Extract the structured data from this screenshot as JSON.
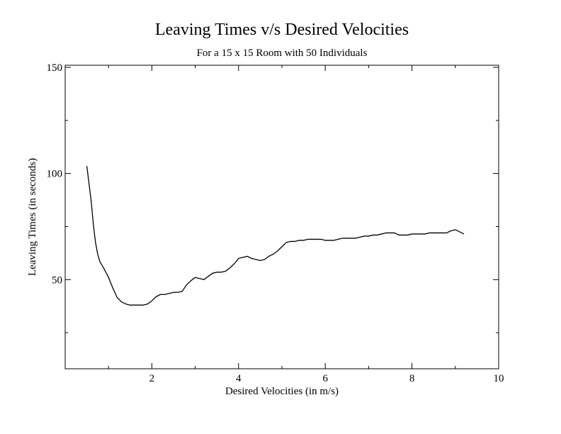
{
  "chart_data": {
    "type": "line",
    "title": "Leaving Times v/s Desired Velocities",
    "subtitle": "For a 15 x 15 Room with 50 Individuals",
    "xlabel": "Desired Velocities (in m/s)",
    "ylabel": "Leaving Times (in seconds)",
    "xlim": [
      0,
      10
    ],
    "ylim": [
      8,
      151
    ],
    "x_ticks": [
      "2",
      "4",
      "6",
      "8",
      "10"
    ],
    "y_ticks": [
      "50",
      "100",
      "150"
    ],
    "grid": false,
    "legend": "none",
    "series": [
      {
        "color": "#000000",
        "x": [
          0.5,
          0.6,
          0.65,
          0.7,
          0.75,
          0.8,
          0.9,
          1.0,
          1.1,
          1.2,
          1.3,
          1.4,
          1.5,
          1.6,
          1.7,
          1.8,
          1.9,
          2.0,
          2.1,
          2.2,
          2.3,
          2.4,
          2.5,
          2.6,
          2.7,
          2.8,
          2.9,
          3.0,
          3.1,
          3.2,
          3.3,
          3.4,
          3.5,
          3.6,
          3.7,
          3.8,
          3.9,
          4.0,
          4.1,
          4.2,
          4.3,
          4.4,
          4.5,
          4.6,
          4.7,
          4.8,
          4.9,
          5.0,
          5.1,
          5.2,
          5.3,
          5.4,
          5.5,
          5.6,
          5.7,
          5.8,
          5.9,
          6.0,
          6.1,
          6.2,
          6.3,
          6.4,
          6.5,
          6.6,
          6.7,
          6.8,
          6.9,
          7.0,
          7.1,
          7.2,
          7.3,
          7.4,
          7.5,
          7.6,
          7.7,
          7.8,
          7.9,
          8.0,
          8.1,
          8.2,
          8.3,
          8.4,
          8.5,
          8.6,
          8.7,
          8.8,
          8.9,
          9.0,
          9.1,
          9.2
        ],
        "y": [
          103.5,
          87,
          76,
          67.5,
          62,
          58.5,
          55,
          51,
          46,
          41.5,
          39.5,
          38.5,
          38,
          38,
          38,
          38,
          38.5,
          40,
          42,
          43,
          43,
          43.5,
          44,
          44,
          44.5,
          47.5,
          49.5,
          51,
          50.5,
          50,
          51.5,
          53,
          53.5,
          53.5,
          54,
          55.5,
          57.5,
          60,
          60.5,
          61,
          60,
          59.5,
          59,
          59.5,
          61,
          62,
          63.5,
          65.5,
          67.5,
          68,
          68,
          68.5,
          68.5,
          69,
          69,
          69,
          69,
          68.5,
          68.5,
          68.5,
          69,
          69.5,
          69.5,
          69.5,
          69.5,
          70,
          70.5,
          70.5,
          71,
          71,
          71.5,
          72,
          72,
          72,
          71,
          71,
          71,
          71.5,
          71.5,
          71.5,
          71.5,
          72,
          72,
          72,
          72,
          72,
          73,
          73.5,
          72.5,
          71.5
        ]
      }
    ]
  }
}
